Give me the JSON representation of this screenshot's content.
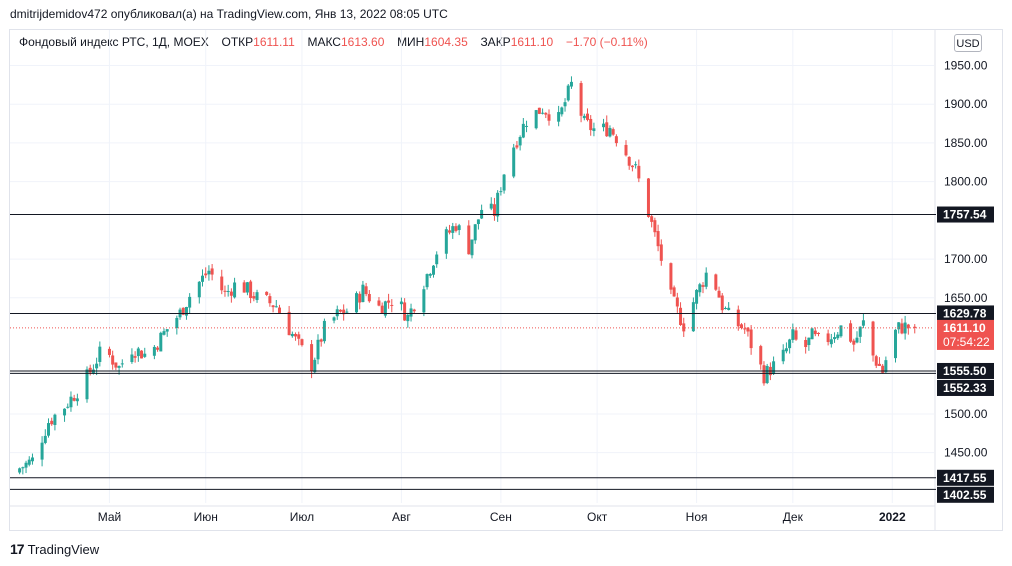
{
  "header": {
    "caption": "dmitrijdemidov472 опубликовал(а) на TradingView.com, Янв 13, 2022 08:05 UTC"
  },
  "legend": {
    "symbol": "Фондовый индекс РТС, 1Д, MOEX",
    "open_label": "ОТКР",
    "open_value": "1611.11",
    "high_label": "МАКС",
    "high_value": "1613.60",
    "low_label": "МИН",
    "low_value": "1604.35",
    "close_label": "ЗАКР",
    "close_value": "1611.10",
    "change": "−1.70 (−0.11%)"
  },
  "currency_button": "USD",
  "branding": {
    "logo_text": "17",
    "name": "TradingView"
  },
  "colors": {
    "up": "#26a69a",
    "down": "#ef5350",
    "grid": "#f0f3fa",
    "level_line": "#131722",
    "level_label_bg": "#131722",
    "last_price": "#ef5350"
  },
  "chart_data": {
    "type": "candlestick",
    "title": "Фондовый индекс РТС, 1Д, MOEX",
    "ylim": [
      1385,
      1970
    ],
    "y_ticks": [
      1450,
      1500,
      1650,
      1700,
      1800,
      1850,
      1900,
      1950
    ],
    "y_tick_labels": [
      "1450.00",
      "1500.00",
      "1650.00",
      "1700.00",
      "1800.00",
      "1850.00",
      "1900.00",
      "1950.00"
    ],
    "x_ticks": [
      "Май",
      "Июн",
      "Июл",
      "Авг",
      "Сен",
      "Окт",
      "Ноя",
      "Дек",
      "2022"
    ],
    "x_range_days": [
      -3,
      285
    ],
    "x_tick_days": [
      28,
      58,
      88,
      119,
      150,
      180,
      211,
      241,
      272
    ],
    "grid": true,
    "series": [
      {
        "name": "Фондовый индекс РТС",
        "anchors_day": [
          0,
          4,
          9,
          14,
          20,
          26,
          31,
          35,
          40,
          46,
          50,
          54,
          59,
          64,
          68,
          74,
          80,
          86,
          91,
          95,
          99,
          103,
          107,
          112,
          117,
          121,
          127,
          131,
          136,
          140,
          144,
          148,
          152,
          158,
          163,
          168,
          172,
          176,
          180,
          184,
          188,
          192,
          196,
          200,
          203,
          207,
          211,
          215,
          219,
          222,
          226,
          229,
          232,
          235,
          238,
          241,
          244,
          247,
          250,
          254,
          257,
          260,
          263,
          266,
          269,
          272,
          274,
          276,
          279
        ],
        "anchors_close": [
          1430,
          1440,
          1490,
          1510,
          1540,
          1585,
          1560,
          1585,
          1575,
          1610,
          1630,
          1660,
          1685,
          1655,
          1670,
          1650,
          1640,
          1595,
          1563,
          1610,
          1628,
          1635,
          1660,
          1638,
          1650,
          1625,
          1680,
          1720,
          1745,
          1715,
          1765,
          1760,
          1830,
          1880,
          1895,
          1880,
          1925,
          1875,
          1865,
          1870,
          1845,
          1815,
          1760,
          1700,
          1650,
          1615,
          1655,
          1690,
          1640,
          1620,
          1610,
          1580,
          1550,
          1562,
          1575,
          1600,
          1580,
          1600,
          1590,
          1605,
          1615,
          1590,
          1617,
          1575,
          1555,
          1600,
          1611.1,
          1612.8,
          1611.1
        ]
      }
    ],
    "levels": [
      {
        "value": 1757.54,
        "label": "1757.54"
      },
      {
        "value": 1629.78,
        "label": "1629.78"
      },
      {
        "value": 1555.5,
        "label": "1555.50"
      },
      {
        "value": 1552.33,
        "label": "1552.33"
      },
      {
        "value": 1417.55,
        "label": "1417.55"
      },
      {
        "value": 1402.55,
        "label": "1402.55"
      }
    ],
    "last_price": {
      "value": 1611.1,
      "label": "1611.10",
      "countdown": "07:54:22"
    }
  }
}
